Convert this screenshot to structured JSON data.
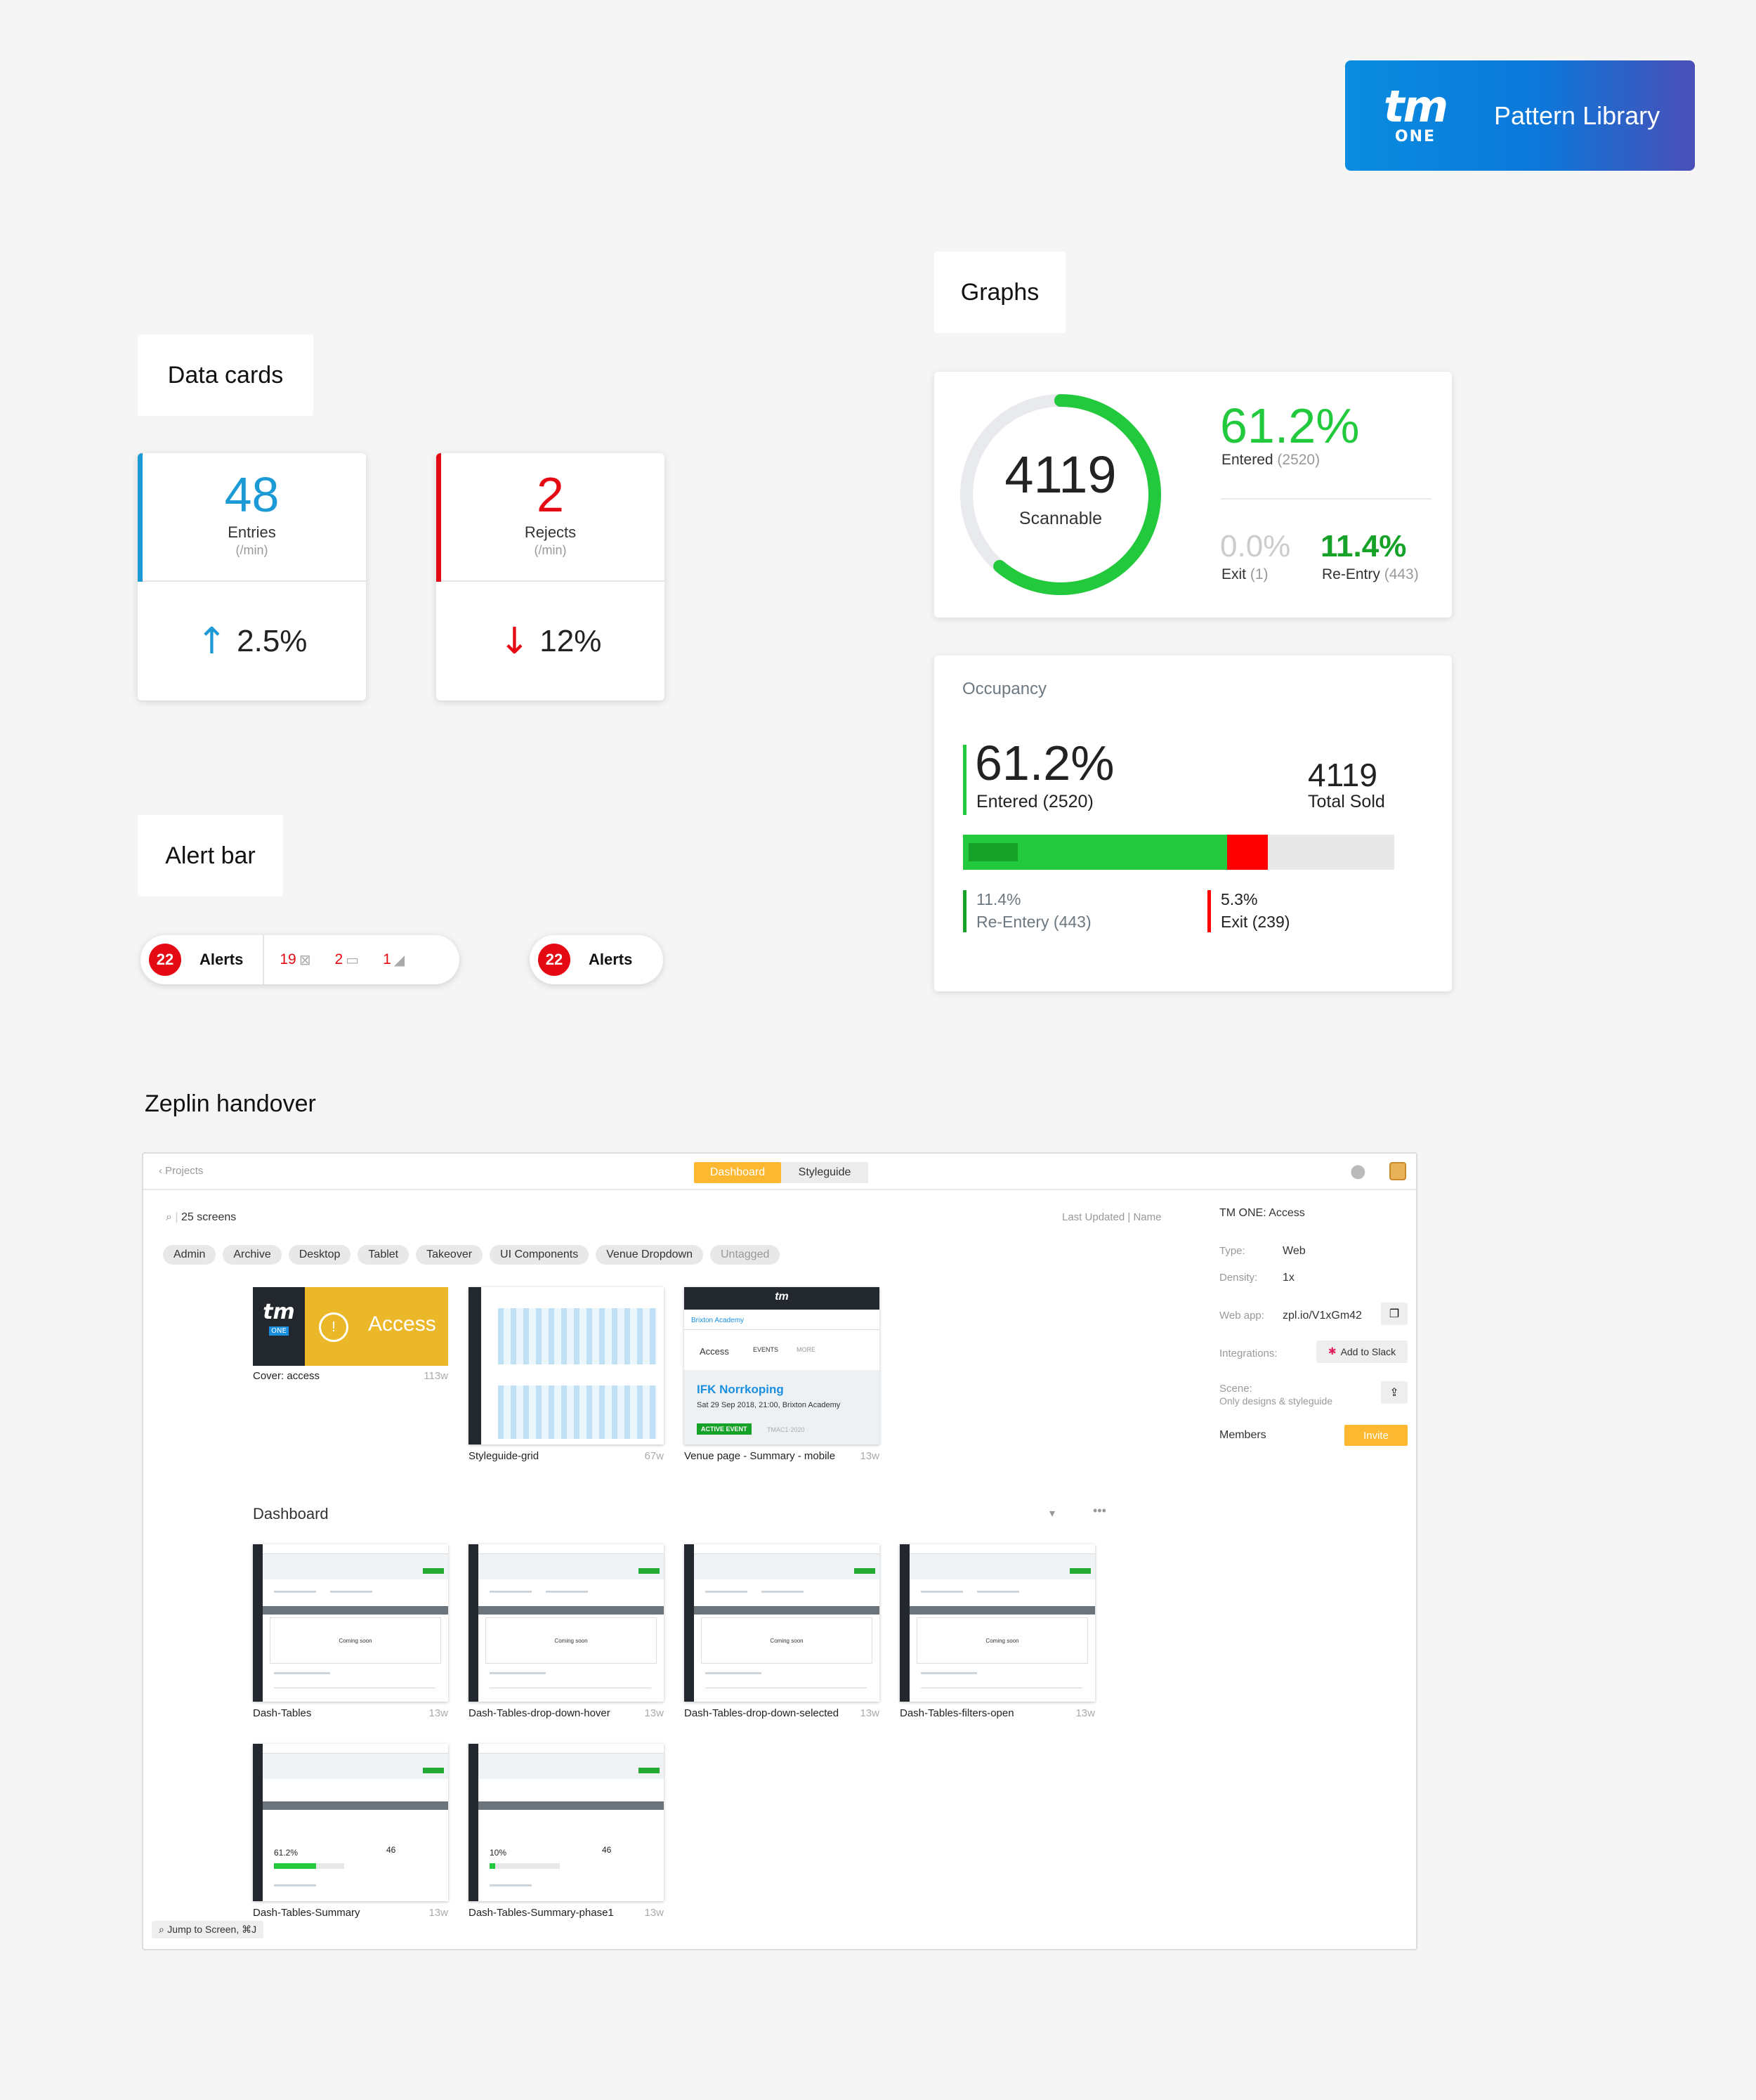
{
  "brand": {
    "logo_tm": "tm",
    "logo_one": "ONE",
    "title": "Pattern Library",
    "gradient": [
      "#0a8de0",
      "#4a4fb8"
    ]
  },
  "sections": {
    "data_cards": "Data cards",
    "graphs": "Graphs",
    "alert_bar": "Alert bar",
    "zeplin": "Zeplin handover"
  },
  "data_cards": [
    {
      "value": "48",
      "label": "Entries",
      "unit": "(/min)",
      "change": "2.5%",
      "direction": "up",
      "color": "#1b9ad6"
    },
    {
      "value": "2",
      "label": "Rejects",
      "unit": "(/min)",
      "change": "12%",
      "direction": "down",
      "color": "#e50914"
    }
  ],
  "alerts": {
    "full": {
      "count": "22",
      "label": "Alerts",
      "items": [
        {
          "count": "19",
          "icon": "no-image-icon"
        },
        {
          "count": "2",
          "icon": "battery-icon"
        },
        {
          "count": "1",
          "icon": "signal-icon"
        }
      ]
    },
    "compact": {
      "count": "22",
      "label": "Alerts"
    }
  },
  "graph_card": {
    "total": "4119",
    "total_label": "Scannable",
    "progress": 0.612,
    "entered_pct": "61.2%",
    "entered_label": "Entered",
    "entered_count": "(2520)",
    "exit_pct": "0.0%",
    "exit_label": "Exit",
    "exit_count": "(1)",
    "reentry_pct": "11.4%",
    "reentry_label": "Re-Entry",
    "reentry_count": "(443)",
    "colors": {
      "green": "#22c93c",
      "dark_green": "#16a128"
    }
  },
  "occupancy": {
    "title": "Occupancy",
    "entered_pct": "61.2%",
    "entered_label": "Entered (2520)",
    "total": "4119",
    "total_label": "Total Sold",
    "bar": {
      "entered": 0.612,
      "reentry": 0.114,
      "exit": 0.053
    },
    "reentry_pct": "11.4%",
    "reentry_label": "Re-Entery (443)",
    "exit_pct": "5.3%",
    "exit_label": "Exit (239)"
  },
  "zeplin": {
    "back": "Projects",
    "tabs": [
      "Dashboard",
      "Styleguide"
    ],
    "screens_count": "25 screens",
    "sort": "Last Updated | Name",
    "tags": [
      "Admin",
      "Archive",
      "Desktop",
      "Tablet",
      "Takeover",
      "UI Components",
      "Venue Dropdown",
      "Untagged"
    ],
    "cover": {
      "logo_tm": "tm",
      "logo_one": "ONE",
      "access": "Access",
      "name": "Cover: access",
      "age": "113w"
    },
    "grid_thumb": {
      "name": "Styleguide-grid",
      "age": "67w"
    },
    "venue_thumb": {
      "name": "Venue page - Summary - mobile",
      "age": "13w",
      "venue": "Brixton Academy",
      "tab_access": "Access",
      "tab_events": "EVENTS",
      "tab_more": "MORE",
      "event": "IFK Norrkoping",
      "date": "Sat 29 Sep 2018, 21:00, Brixton Academy",
      "status": "ACTIVE EVENT",
      "code": "TMAC1-2020"
    },
    "section_title": "Dashboard",
    "dash_thumbs": [
      {
        "name": "Dash-Tables",
        "age": "13w",
        "box": "Coming soon"
      },
      {
        "name": "Dash-Tables-drop-down-hover",
        "age": "13w",
        "box": "Coming soon"
      },
      {
        "name": "Dash-Tables-drop-down-selected",
        "age": "13w",
        "box": "Coming soon"
      },
      {
        "name": "Dash-Tables-filters-open",
        "age": "13w",
        "box": "Coming soon"
      }
    ],
    "summary_thumbs": [
      {
        "name": "Dash-Tables-Summary",
        "age": "13w",
        "pct": "61.2%",
        "num": "46"
      },
      {
        "name": "Dash-Tables-Summary-phase1",
        "age": "13w",
        "pct": "10%",
        "num": "46"
      }
    ],
    "panel": {
      "title": "TM ONE: Access",
      "type_label": "Type:",
      "type": "Web",
      "density_label": "Density:",
      "density": "1x",
      "webapp_label": "Web app:",
      "webapp": "zpl.io/V1xGm42",
      "integrations_label": "Integrations:",
      "slack": "Add to Slack",
      "scene_label": "Scene:",
      "scene_sub": "Only designs & styleguide",
      "members": "Members",
      "invite": "Invite"
    },
    "jump": "Jump to Screen, ⌘J"
  }
}
